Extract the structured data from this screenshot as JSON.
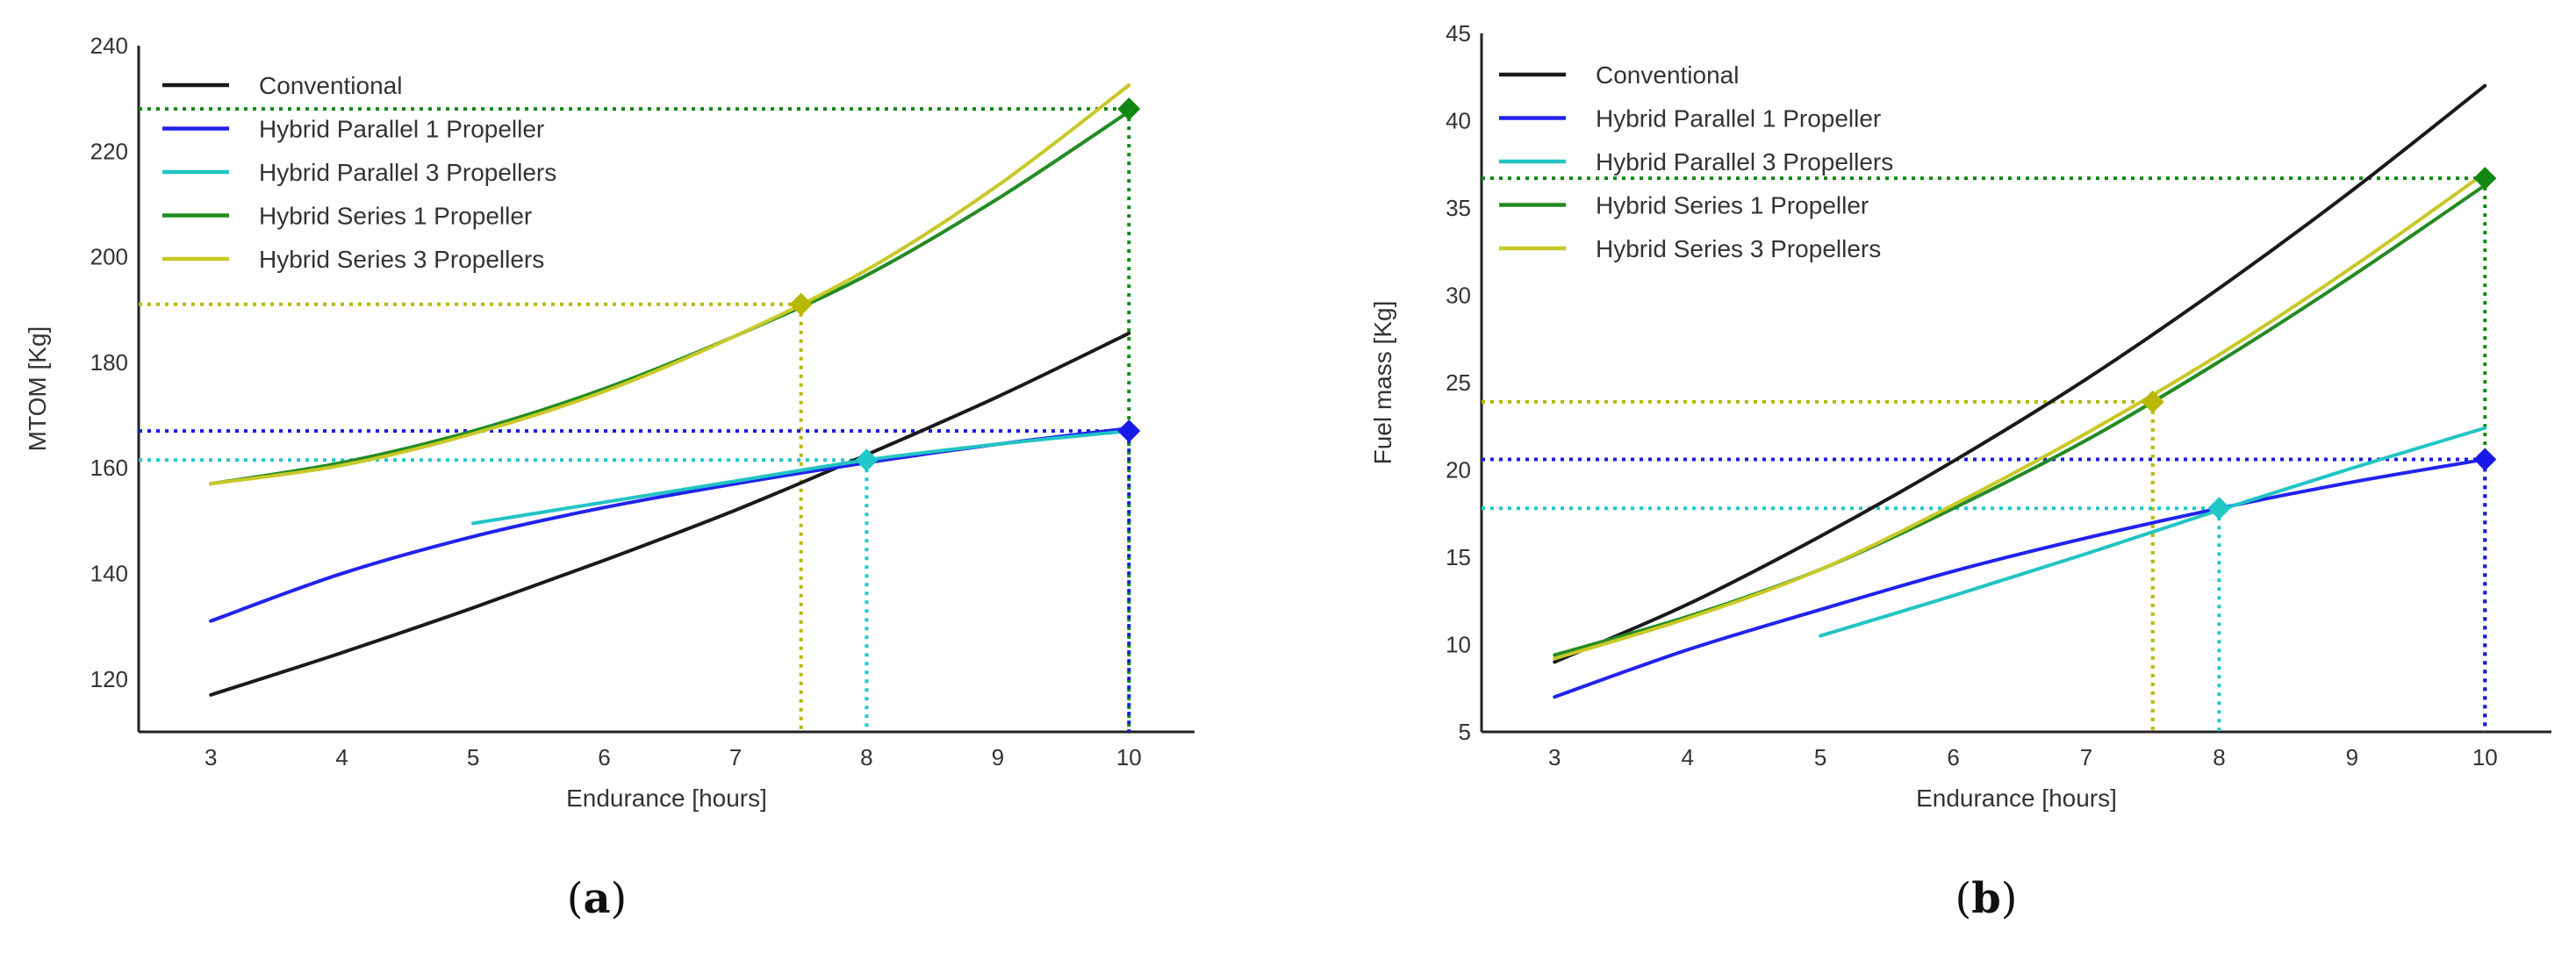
{
  "colors": {
    "Conventional": "#1a1a1a",
    "Hybrid Parallel 1 Propeller": "#2222ee",
    "Hybrid Parallel 3 Propellers": "#22c4c4",
    "Hybrid Series 1 Propeller": "#228b22",
    "Hybrid Series 3 Propellers": "#c8c828",
    "Series1Marker": "#118811",
    "Series3Marker": "#b8b800",
    "Parallel1Marker": "#1818e8",
    "Parallel3Marker": "#20c8c8"
  },
  "chart_data": [
    {
      "type": "line",
      "panel_label": "(a)",
      "xlabel": "Endurance [hours]",
      "ylabel": "MTOM [Kg]",
      "xlim": [
        2.45,
        10.5
      ],
      "ylim": [
        110,
        240
      ],
      "xticks": [
        3,
        4,
        5,
        6,
        7,
        8,
        9,
        10
      ],
      "yticks": [
        120,
        140,
        160,
        180,
        200,
        220,
        240
      ],
      "legend": [
        "Conventional",
        "Hybrid Parallel 1 Propeller",
        "Hybrid Parallel 3 Propellers",
        "Hybrid Series 1 Propeller",
        "Hybrid Series 3 Propellers"
      ],
      "series": [
        {
          "name": "Conventional",
          "x": [
            3,
            4,
            5,
            6,
            7,
            8,
            9,
            10
          ],
          "values": [
            117,
            125,
            133.5,
            142.5,
            152,
            162.5,
            173.5,
            185.5
          ]
        },
        {
          "name": "Hybrid Parallel 1 Propeller",
          "x": [
            3,
            4,
            5,
            6,
            7,
            8,
            9,
            10
          ],
          "values": [
            131,
            140,
            147,
            152.5,
            157,
            161,
            164.5,
            167.5
          ]
        },
        {
          "name": "Hybrid Parallel 3 Propellers",
          "x": [
            5,
            6,
            7,
            8,
            9,
            10
          ],
          "values": [
            149.5,
            153.5,
            157.5,
            161.5,
            164.5,
            167
          ]
        },
        {
          "name": "Hybrid Series 1 Propeller",
          "x": [
            3,
            4,
            5,
            6,
            7,
            8,
            9,
            10
          ],
          "values": [
            157,
            161,
            167,
            175,
            185,
            196.5,
            211,
            227.5
          ]
        },
        {
          "name": "Hybrid Series 3 Propellers",
          "x": [
            3,
            4,
            5,
            6,
            7,
            8,
            9,
            10
          ],
          "values": [
            157,
            160.5,
            166.5,
            174.5,
            185,
            197.5,
            213.5,
            232.5
          ]
        }
      ],
      "markers": [
        {
          "series": "Hybrid Series 1 Propeller",
          "x": 10,
          "y": 228,
          "color_key": "Series1Marker"
        },
        {
          "series": "Hybrid Series 3 Propellers",
          "x": 7.5,
          "y": 191,
          "color_key": "Series3Marker"
        },
        {
          "series": "Hybrid Parallel 1 Propeller",
          "x": 10,
          "y": 167,
          "color_key": "Parallel1Marker"
        },
        {
          "series": "Hybrid Parallel 3 Propellers",
          "x": 8,
          "y": 161.5,
          "color_key": "Parallel3Marker"
        }
      ]
    },
    {
      "type": "line",
      "panel_label": "(b)",
      "xlabel": "Endurance [hours]",
      "ylabel": "Fuel mass [Kg]",
      "xlim": [
        2.45,
        10.5
      ],
      "ylim": [
        5,
        45
      ],
      "xticks": [
        3,
        4,
        5,
        6,
        7,
        8,
        9,
        10
      ],
      "yticks": [
        5,
        10,
        15,
        20,
        25,
        30,
        35,
        40,
        45
      ],
      "legend": [
        "Conventional",
        "Hybrid Parallel 1 Propeller",
        "Hybrid Parallel 3 Propellers",
        "Hybrid Series 1 Propeller",
        "Hybrid Series 3 Propellers"
      ],
      "series": [
        {
          "name": "Conventional",
          "x": [
            3,
            4,
            5,
            6,
            7,
            8,
            9,
            10
          ],
          "values": [
            9,
            12.3,
            16.2,
            20.5,
            25.2,
            30.4,
            36,
            42
          ]
        },
        {
          "name": "Hybrid Parallel 1 Propeller",
          "x": [
            3,
            4,
            5,
            6,
            7,
            8,
            9,
            10
          ],
          "values": [
            7,
            9.7,
            12,
            14.2,
            16.1,
            17.8,
            19.3,
            20.6
          ]
        },
        {
          "name": "Hybrid Parallel 3 Propellers",
          "x": [
            5,
            6,
            7,
            8,
            9,
            10
          ],
          "values": [
            10.5,
            12.8,
            15.2,
            17.7,
            20.1,
            22.4
          ]
        },
        {
          "name": "Hybrid Series 1 Propeller",
          "x": [
            3,
            4,
            5,
            6,
            7,
            8,
            9,
            10
          ],
          "values": [
            9.4,
            11.6,
            14.3,
            17.8,
            21.7,
            26.2,
            31.1,
            36.3
          ]
        },
        {
          "name": "Hybrid Series 3 Propellers",
          "x": [
            3,
            4,
            5,
            6,
            7,
            8,
            9,
            10
          ],
          "values": [
            9.2,
            11.5,
            14.3,
            18,
            22.1,
            26.6,
            31.6,
            37
          ]
        }
      ],
      "markers": [
        {
          "series": "Hybrid Series 1 Propeller",
          "x": 10,
          "y": 36.7,
          "color_key": "Series1Marker"
        },
        {
          "series": "Hybrid Series 3 Propellers",
          "x": 7.5,
          "y": 23.9,
          "color_key": "Series3Marker"
        },
        {
          "series": "Hybrid Parallel 1 Propeller",
          "x": 10,
          "y": 20.6,
          "color_key": "Parallel1Marker"
        },
        {
          "series": "Hybrid Parallel 3 Propellers",
          "x": 8,
          "y": 17.8,
          "color_key": "Parallel3Marker"
        }
      ]
    }
  ]
}
